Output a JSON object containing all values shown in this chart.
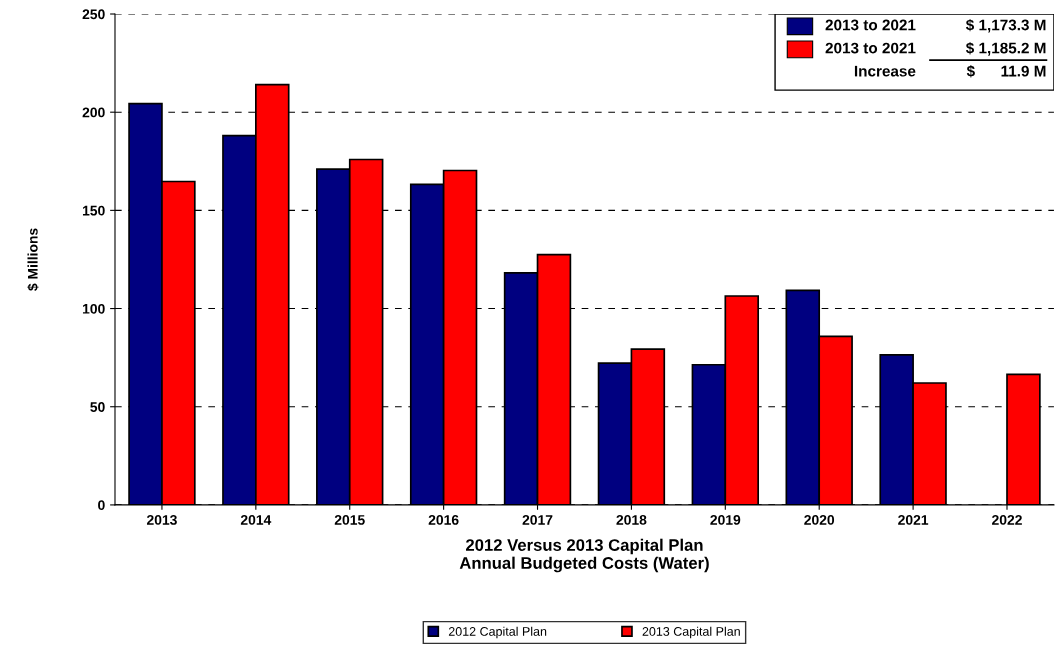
{
  "chart_data": {
    "type": "bar",
    "xlabel": "2012 Versus 2013 Capital Plan\nAnnual Budgeted Costs (Water)",
    "ylabel": "$ Millions",
    "categories": [
      "2013",
      "2014",
      "2015",
      "2016",
      "2017",
      "2018",
      "2019",
      "2020",
      "2021",
      "2022"
    ],
    "series": [
      {
        "name": "2012 Capital Plan",
        "color": "#000080",
        "values": [
          204.4,
          188.1,
          171,
          163.2,
          118.2,
          72.2,
          71.4,
          109.3,
          76.4,
          null
        ]
      },
      {
        "name": "2013 Capital Plan",
        "color": "#ff0000",
        "values": [
          164.7,
          214,
          175.9,
          170.3,
          127.5,
          79.3,
          106.4,
          85.8,
          62.1,
          66.5
        ]
      }
    ],
    "ylim": [
      0,
      250
    ],
    "yticks": [
      0,
      50,
      100,
      150,
      200,
      250
    ],
    "grid": "y",
    "legend": "bottom",
    "annotations": [
      "2013 to 2021",
      "$ 1,173.3 M",
      "2013 to 2021",
      "$ 1,185.2 M",
      "Increase",
      "$      11.9 M"
    ]
  }
}
